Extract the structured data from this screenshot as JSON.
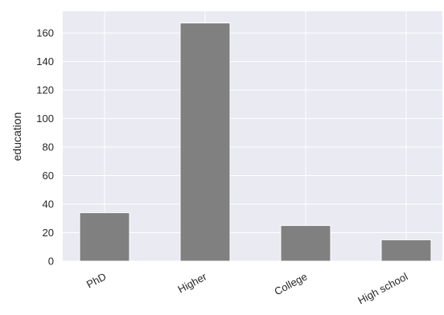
{
  "chart_data": {
    "type": "bar",
    "categories": [
      "PhD",
      "Higher",
      "College",
      "High school"
    ],
    "values": [
      34,
      167,
      25,
      15
    ],
    "ylabel": "education",
    "xlabel": "",
    "ylim": [
      0,
      175
    ],
    "yticks": [
      0,
      20,
      40,
      60,
      80,
      100,
      120,
      140,
      160
    ],
    "grid": true,
    "colors": {
      "background": "#eaeaf2",
      "bar": "#808080",
      "grid": "#ffffff",
      "text": "#262626"
    }
  }
}
